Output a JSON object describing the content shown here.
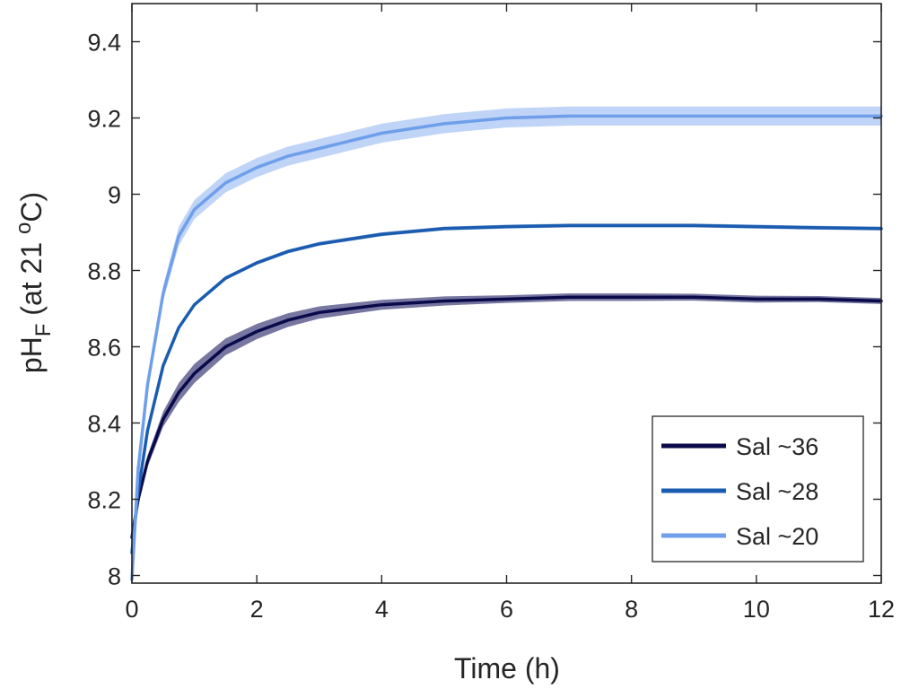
{
  "chart_data": {
    "type": "line",
    "xlabel": "Time (h)",
    "ylabel": {
      "main": "pH",
      "subscript": "F",
      "prefix": " (at 21 ",
      "superscript": "o",
      "suffix": "C)"
    },
    "xlim": [
      0,
      12
    ],
    "ylim": [
      7.98,
      9.5
    ],
    "xticks": [
      0,
      2,
      4,
      6,
      8,
      10,
      12
    ],
    "xtick_labels": [
      "0",
      "2",
      "4",
      "6",
      "8",
      "10",
      "12"
    ],
    "yticks": [
      8,
      8.2,
      8.4,
      8.6,
      8.8,
      9,
      9.2,
      9.4
    ],
    "ytick_labels": [
      "8",
      "8.2",
      "8.4",
      "8.6",
      "8.8",
      "9",
      "9.2",
      "9.4"
    ],
    "grid": false,
    "legend_position": "bottom-right",
    "x": [
      0,
      0.1,
      0.25,
      0.5,
      0.75,
      1,
      1.5,
      2,
      2.5,
      3,
      4,
      5,
      6,
      7,
      8,
      9,
      10,
      11,
      12
    ],
    "series": [
      {
        "name": "Sal ~36",
        "color": "#0a0a4a",
        "band_color": "#4a4a82",
        "values": [
          8.1,
          8.2,
          8.3,
          8.41,
          8.48,
          8.53,
          8.6,
          8.64,
          8.67,
          8.69,
          8.71,
          8.72,
          8.725,
          8.73,
          8.73,
          8.73,
          8.725,
          8.725,
          8.72
        ],
        "band": [
          0.0,
          0.01,
          0.015,
          0.02,
          0.025,
          0.025,
          0.022,
          0.02,
          0.018,
          0.016,
          0.013,
          0.012,
          0.01,
          0.01,
          0.01,
          0.009,
          0.009,
          0.008,
          0.008
        ]
      },
      {
        "name": "Sal ~28",
        "color": "#1a5cb0",
        "band_color": "#6f8fc8",
        "values": [
          8.06,
          8.22,
          8.38,
          8.55,
          8.65,
          8.71,
          8.78,
          8.82,
          8.85,
          8.87,
          8.895,
          8.91,
          8.915,
          8.918,
          8.918,
          8.918,
          8.915,
          8.912,
          8.91
        ],
        "band": [
          0.0,
          0.004,
          0.005,
          0.005,
          0.005,
          0.005,
          0.005,
          0.005,
          0.005,
          0.005,
          0.005,
          0.005,
          0.005,
          0.005,
          0.005,
          0.005,
          0.005,
          0.005,
          0.005
        ]
      },
      {
        "name": "Sal ~20",
        "color": "#6f9fea",
        "band_color": "#a9c6f3",
        "values": [
          7.99,
          8.28,
          8.5,
          8.74,
          8.89,
          8.96,
          9.03,
          9.07,
          9.1,
          9.12,
          9.16,
          9.185,
          9.2,
          9.205,
          9.205,
          9.205,
          9.205,
          9.205,
          9.205
        ],
        "band": [
          0.0,
          0.01,
          0.015,
          0.02,
          0.025,
          0.025,
          0.025,
          0.025,
          0.025,
          0.025,
          0.025,
          0.025,
          0.025,
          0.025,
          0.025,
          0.025,
          0.025,
          0.025,
          0.025
        ]
      }
    ]
  }
}
